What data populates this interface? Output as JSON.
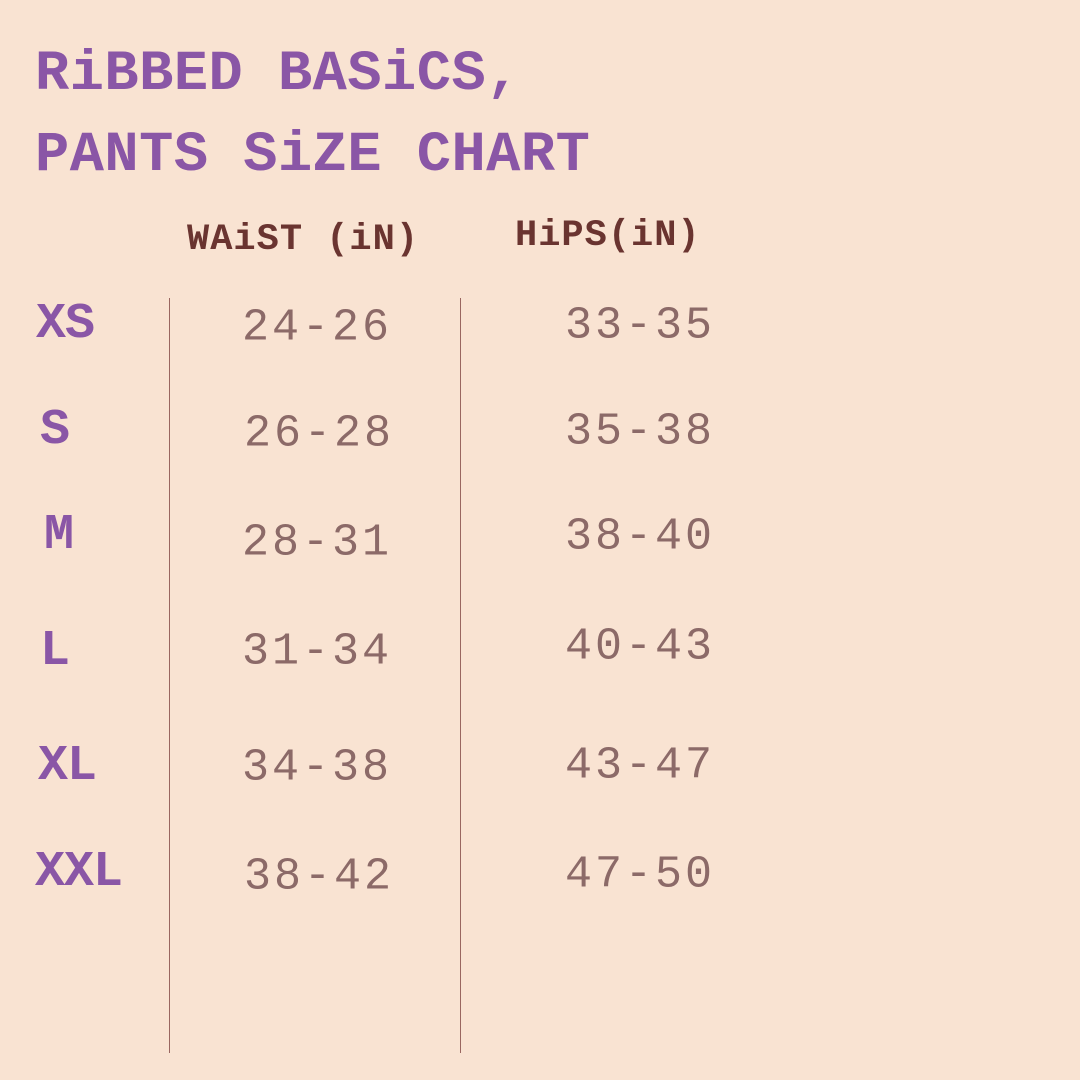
{
  "title": {
    "line1": "RiBBED BASiCS,",
    "line2": "PANTS SiZE CHART"
  },
  "columns": {
    "waist": "WAiST (iN)",
    "hips": "HiPS(iN)"
  },
  "rows": [
    {
      "size": "XS",
      "waist": "24-26",
      "hips": "33-35"
    },
    {
      "size": "S",
      "waist": "26-28",
      "hips": "35-38"
    },
    {
      "size": "M",
      "waist": "28-31",
      "hips": "38-40"
    },
    {
      "size": "L",
      "waist": "31-34",
      "hips": "40-43"
    },
    {
      "size": "XL",
      "waist": "34-38",
      "hips": "43-47"
    },
    {
      "size": "XXL",
      "waist": "38-42",
      "hips": "47-50"
    }
  ],
  "colors": {
    "background": "#F9E3D2",
    "title": "#8A56A6",
    "header": "#6A3430",
    "values": "#8C6A68",
    "divider": "#9A6660"
  }
}
